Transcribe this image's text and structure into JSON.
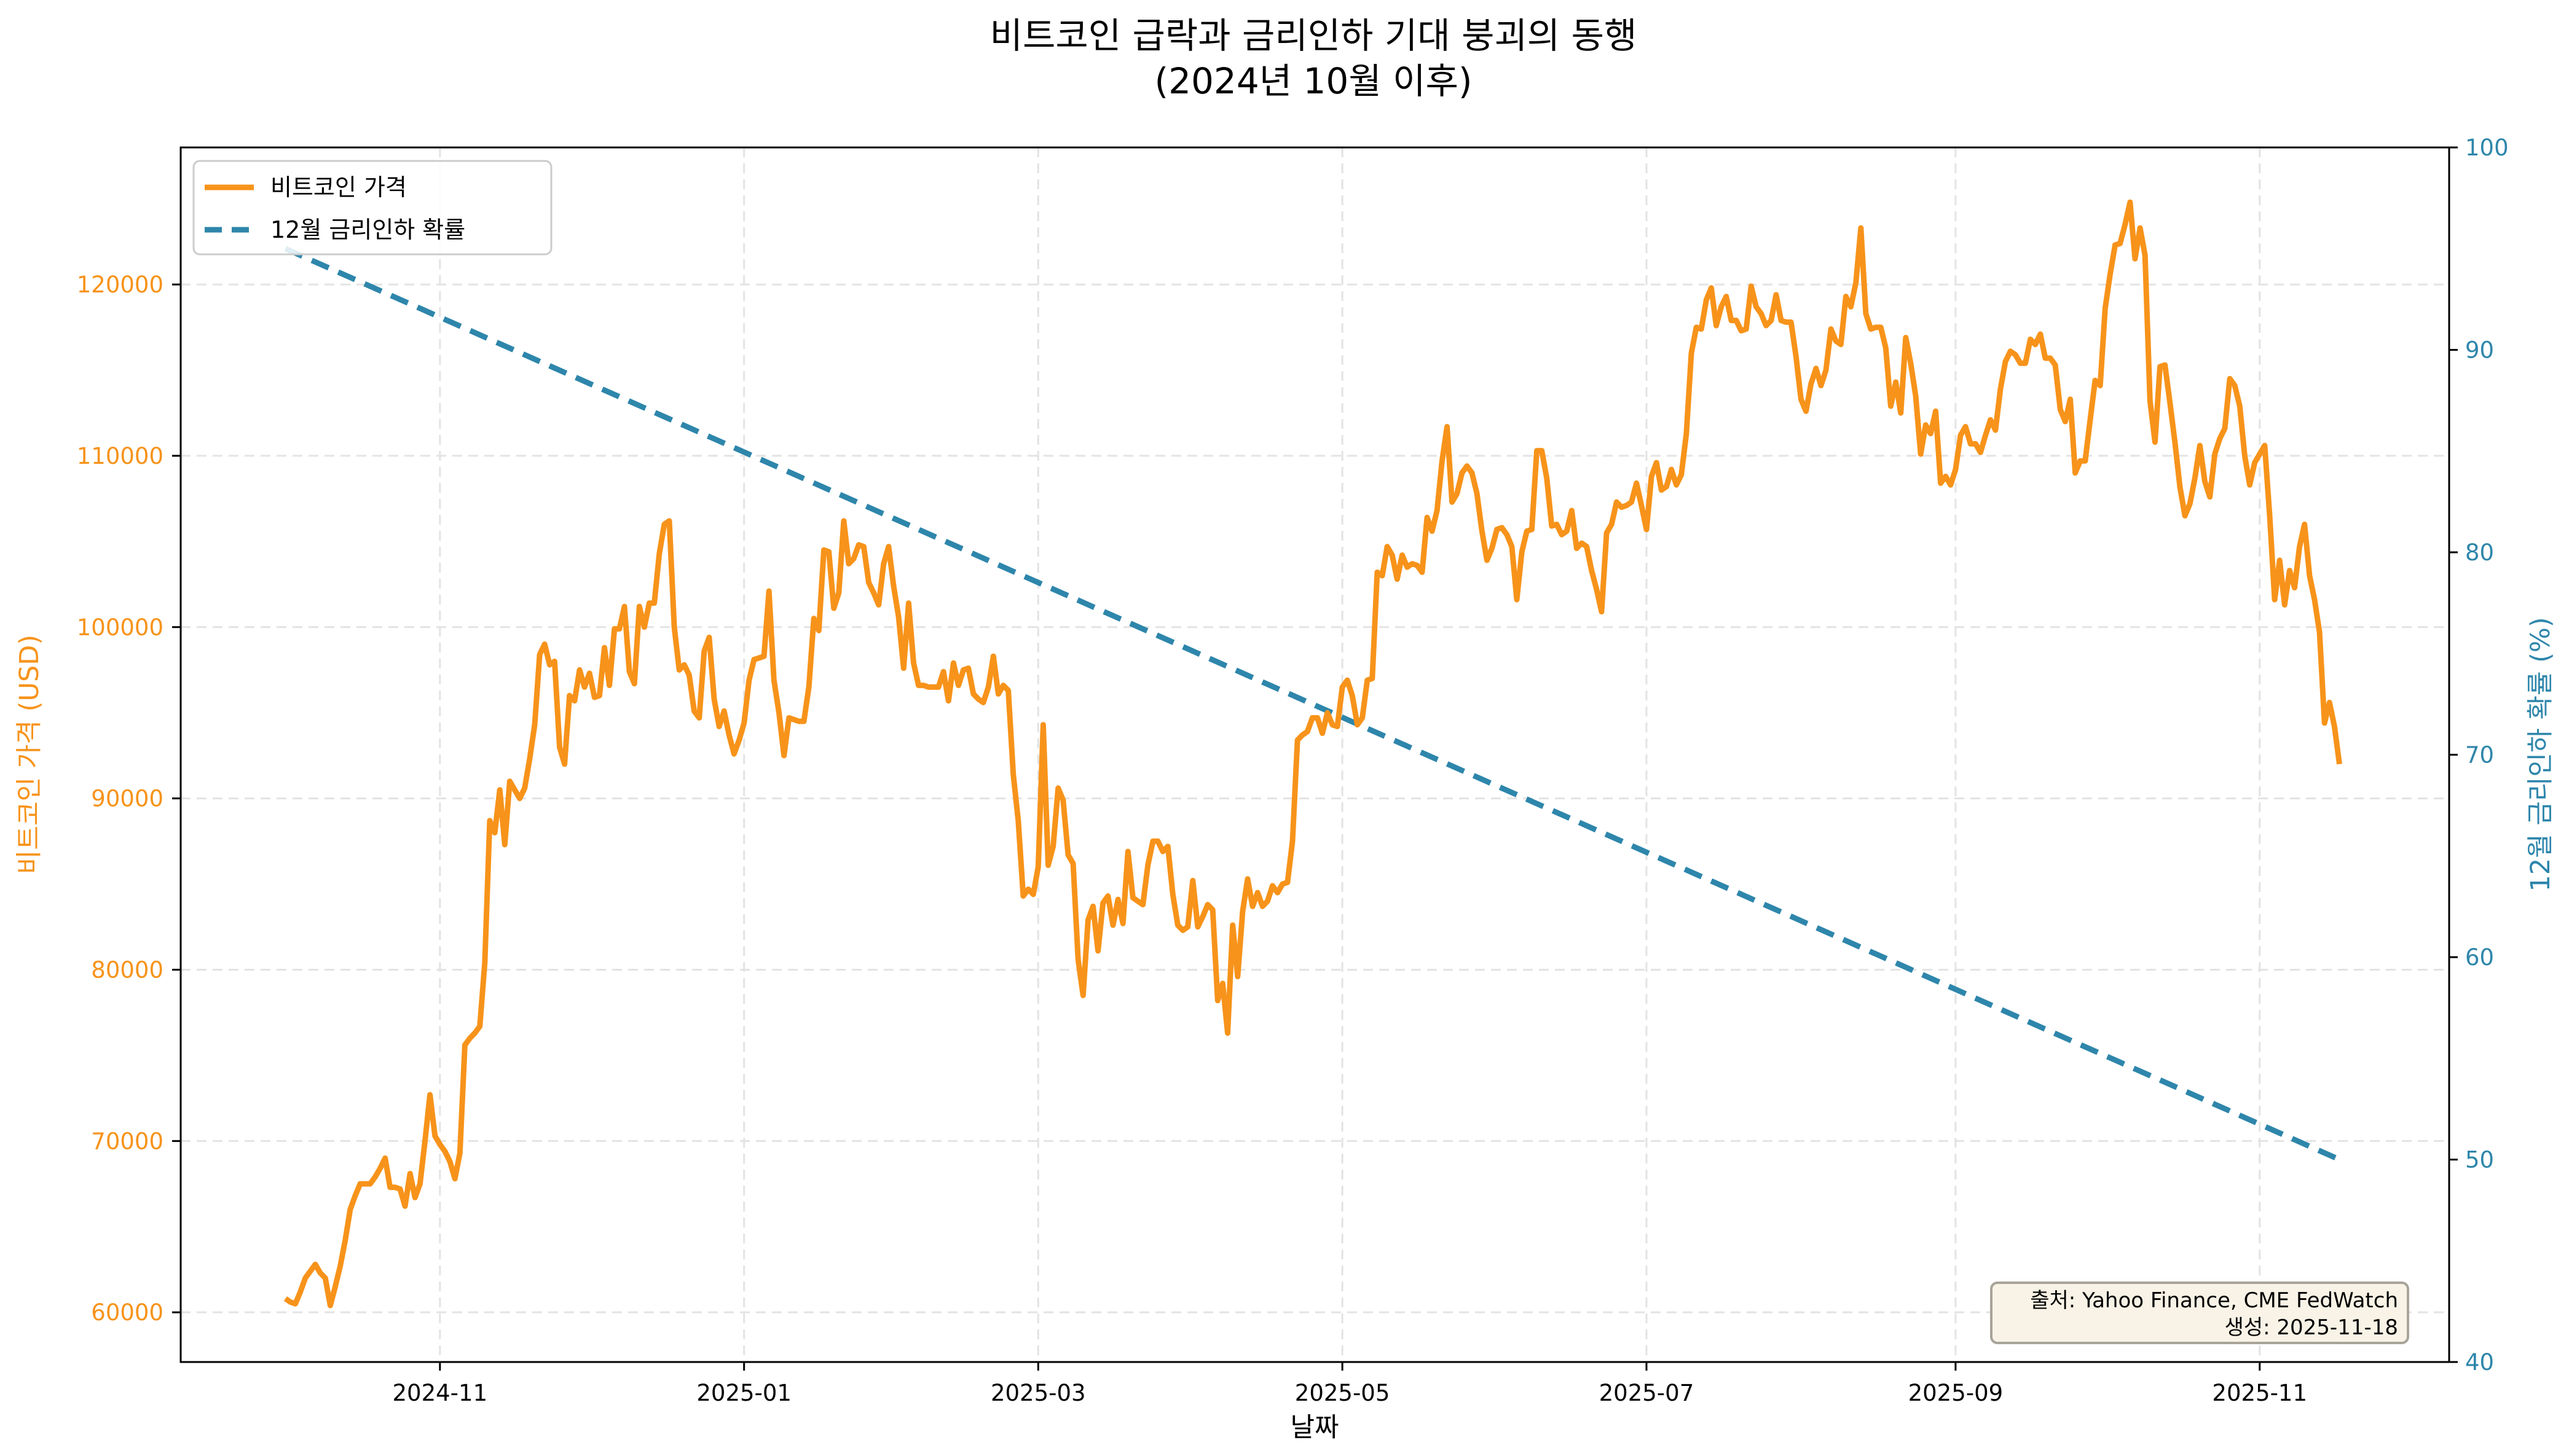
{
  "chart_data": {
    "type": "line",
    "title": [
      "비트코인 급락과 금리인하 기대 붕괴의 동행",
      "(2024년 10월 이후)"
    ],
    "xlabel": "날짜",
    "ylabel_left": "비트코인 가격 (USD)",
    "ylabel_right": "12월 금리인하 확률 (%)",
    "xlim": [
      "2024-09-10",
      "2025-12-09"
    ],
    "ylim_left": [
      57100,
      128000
    ],
    "ylim_right": [
      40,
      100
    ],
    "x_ticks": [
      "2024-11",
      "2025-01",
      "2025-03",
      "2025-05",
      "2025-07",
      "2025-09",
      "2025-11"
    ],
    "y_ticks_left": [
      60000,
      70000,
      80000,
      90000,
      100000,
      110000,
      120000
    ],
    "y_ticks_right": [
      40,
      50,
      60,
      70,
      80,
      90,
      100
    ],
    "grid": true,
    "legend_position": "top-left",
    "annotation": [
      "출처: Yahoo Finance, CME FedWatch",
      "생성: 2025-11-18"
    ],
    "colors": {
      "price": "#f7931a",
      "probability": "#2e86ab",
      "left_axis": "#f7931a",
      "right_axis": "#2e86ab"
    },
    "series": [
      {
        "name": "비트코인 가격",
        "axis": "left",
        "style": "solid",
        "start": "2024-10-01",
        "frequency": "daily",
        "values": [
          60800,
          60600,
          60500,
          61200,
          62000,
          62400,
          62800,
          62300,
          62000,
          60400,
          61500,
          62700,
          64200,
          66000,
          66800,
          67500,
          67500,
          67500,
          67900,
          68400,
          69000,
          67300,
          67300,
          67200,
          66200,
          68100,
          66700,
          67500,
          70000,
          72700,
          70300,
          69800,
          69400,
          68800,
          67800,
          69300,
          75600,
          76000,
          76300,
          76700,
          80400,
          88700,
          88000,
          90500,
          87300,
          91000,
          90500,
          90000,
          90600,
          92300,
          94300,
          98400,
          99000,
          97800,
          98000,
          93000,
          92000,
          96000,
          95700,
          97500,
          96500,
          97300,
          95900,
          96000,
          98800,
          96600,
          99900,
          99900,
          101200,
          97400,
          96700,
          101200,
          100000,
          101400,
          101400,
          104300,
          106000,
          106200,
          100000,
          97500,
          97800,
          97200,
          95100,
          94700,
          98600,
          99400,
          95800,
          94200,
          95100,
          93700,
          92600,
          93400,
          94400,
          96900,
          98100,
          98200,
          98300,
          102100,
          96900,
          95000,
          92500,
          94700,
          94600,
          94500,
          94500,
          96500,
          100500,
          99800,
          104500,
          104400,
          101100,
          102000,
          106200,
          103700,
          104000,
          104800,
          104700,
          102600,
          102000,
          101300,
          103700,
          104700,
          102400,
          100600,
          97600,
          101400,
          97900,
          96600,
          96600,
          96500,
          96500,
          96500,
          97400,
          95700,
          97900,
          96600,
          97500,
          97600,
          96100,
          95800,
          95600,
          96500,
          98300,
          96100,
          96600,
          96300,
          91400,
          88700,
          84300,
          84700,
          84400,
          86000,
          94300,
          86100,
          87200,
          90600,
          89900,
          86700,
          86200,
          80600,
          78500,
          82900,
          83700,
          81100,
          83900,
          84300,
          82600,
          84100,
          82700,
          86900,
          84200,
          84000,
          83800,
          86100,
          87500,
          87500,
          86900,
          87200,
          84400,
          82600,
          82300,
          82500,
          85200,
          82500,
          83100,
          83800,
          83500,
          78200,
          79200,
          76300,
          82600,
          79600,
          83400,
          85300,
          83700,
          84500,
          83700,
          84000,
          84900,
          84500,
          85000,
          85100,
          87500,
          93400,
          93700,
          93900,
          94700,
          94700,
          93800,
          95000,
          94300,
          94200,
          96500,
          96900,
          96000,
          94300,
          94700,
          96900,
          97000,
          103200,
          103000,
          104700,
          104200,
          102800,
          104200,
          103500,
          103700,
          103600,
          103200,
          106400,
          105600,
          106800,
          109700,
          111700,
          107300,
          107800,
          109000,
          109400,
          109000,
          107800,
          105600,
          103900,
          104600,
          105700,
          105800,
          105400,
          104700,
          101600,
          104400,
          105600,
          105700,
          110300,
          110300,
          108700,
          105900,
          106000,
          105400,
          105600,
          106800,
          104600,
          104900,
          104700,
          103300,
          102200,
          100900,
          105500,
          106000,
          107300,
          107000,
          107100,
          107300,
          108400,
          107100,
          105700,
          108800,
          109600,
          108000,
          108200,
          109200,
          108300,
          108900,
          111300,
          116000,
          117500,
          117400,
          119100,
          119800,
          117600,
          118700,
          119300,
          117900,
          117900,
          117300,
          117400,
          119900,
          118700,
          118300,
          117600,
          117900,
          119400,
          117900,
          117800,
          117800,
          115800,
          113300,
          112600,
          114200,
          115100,
          114100,
          115000,
          117400,
          116700,
          116500,
          119300,
          118700,
          120100,
          123300,
          118300,
          117400,
          117500,
          117500,
          116300,
          112900,
          114300,
          112500,
          116900,
          115400,
          113500,
          110100,
          111800,
          111300,
          112600,
          108400,
          108800,
          108300,
          109200,
          111200,
          111700,
          110700,
          110700,
          110200,
          111200,
          112100,
          111500,
          113900,
          115500,
          116100,
          115900,
          115400,
          115400,
          116800,
          116500,
          117100,
          115700,
          115700,
          115300,
          112700,
          112000,
          113300,
          109000,
          109700,
          109700,
          112100,
          114400,
          114100,
          118600,
          120600,
          122300,
          122400,
          123500,
          124800,
          121500,
          123300,
          121700,
          113200,
          110800,
          115200,
          115300,
          113100,
          110800,
          108200,
          106500,
          107200,
          108700,
          110600,
          108500,
          107600,
          110100,
          111000,
          111600,
          114500,
          114100,
          112900,
          110000,
          108300,
          109600,
          110100,
          110600,
          106500,
          101600,
          103900,
          101300,
          103300,
          102300,
          104700,
          106000,
          103000,
          101600,
          99700,
          94400,
          95600,
          94200,
          92000
        ]
      },
      {
        "name": "12월 금리인하 확률",
        "axis": "right",
        "style": "dashed",
        "x": [
          "2024-10-01",
          "2025-11-17"
        ],
        "values": [
          95,
          50
        ]
      }
    ]
  }
}
